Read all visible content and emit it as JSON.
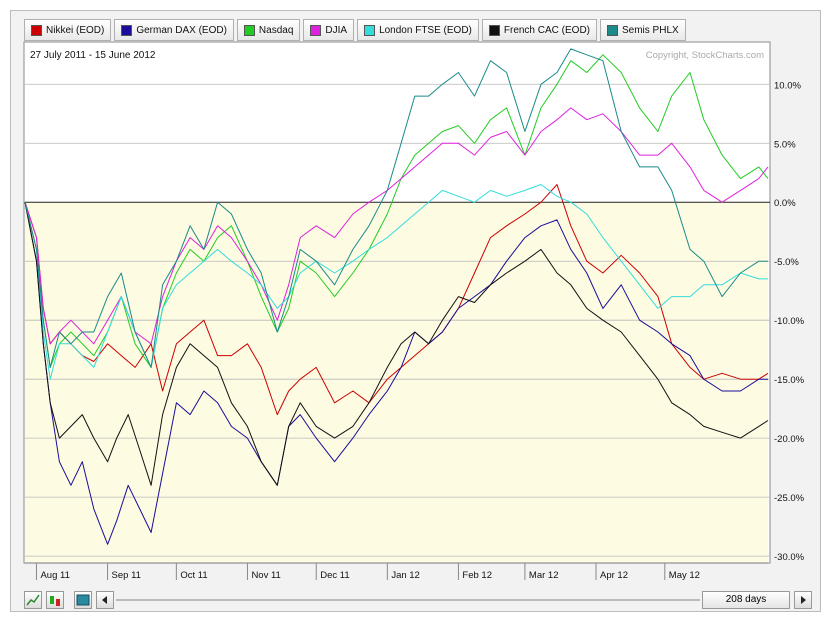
{
  "legend": [
    {
      "label": "Nikkei (EOD)",
      "color": "#cc0000"
    },
    {
      "label": "German DAX (EOD)",
      "color": "#1a0d99"
    },
    {
      "label": "Nasdaq",
      "color": "#22cc22"
    },
    {
      "label": "DJIA",
      "color": "#dd22dd"
    },
    {
      "label": "London FTSE (EOD)",
      "color": "#33dddd"
    },
    {
      "label": "French CAC (EOD)",
      "color": "#111111"
    },
    {
      "label": "Semis PHLX",
      "color": "#1a8a8a"
    }
  ],
  "date_range": "27 July 2011 - 15 June 2012",
  "copyright": "Copyright, StockCharts.com",
  "controls": {
    "days_label": "208 days",
    "prev_icon": "arrow-left-icon",
    "next_icon": "arrow-right-icon"
  },
  "chart_data": {
    "type": "line",
    "y_axis_label": "",
    "ylim": [
      -30.5,
      13.5
    ],
    "y_ticks": [
      "10.0%",
      "5.0%",
      "0.0%",
      "-5.0%",
      "-10.0%",
      "-15.0%",
      "-20.0%",
      "-25.0%",
      "-30.0%"
    ],
    "y_tick_values": [
      10,
      5,
      0,
      -5,
      -10,
      -15,
      -20,
      -25,
      -30
    ],
    "x_ticks": [
      "Aug 11",
      "Sep 11",
      "Oct 11",
      "Nov 11",
      "Dec 11",
      "Jan 12",
      "Feb 12",
      "Mar 12",
      "Apr 12",
      "May 12"
    ],
    "x_tick_days": [
      5,
      36,
      66,
      97,
      127,
      158,
      189,
      218,
      249,
      279
    ],
    "x_range_days": [
      0,
      324
    ],
    "grid": true,
    "legend_position": "top",
    "series": [
      {
        "name": "Nikkei (EOD)",
        "color": "#cc0000",
        "x": [
          0,
          5,
          8,
          11,
          15,
          20,
          25,
          30,
          36,
          42,
          48,
          55,
          60,
          66,
          72,
          78,
          84,
          90,
          97,
          103,
          110,
          115,
          120,
          127,
          135,
          143,
          150,
          158,
          164,
          170,
          176,
          182,
          189,
          196,
          203,
          210,
          218,
          225,
          232,
          238,
          245,
          252,
          260,
          268,
          276,
          282,
          290,
          296,
          304,
          312,
          320,
          324
        ],
        "y": [
          0,
          -3,
          -9,
          -12,
          -11,
          -12,
          -13,
          -13.5,
          -12,
          -13,
          -14,
          -12,
          -16,
          -12,
          -11,
          -10,
          -13,
          -13,
          -12,
          -14,
          -18,
          -16,
          -15,
          -14,
          -17,
          -16,
          -17,
          -15,
          -14,
          -13,
          -12,
          -11,
          -9,
          -6,
          -3,
          -2,
          -1,
          0,
          1.5,
          -2,
          -5,
          -6,
          -4.5,
          -6,
          -8,
          -12,
          -14,
          -15,
          -14.5,
          -15,
          -15,
          -14.5
        ]
      },
      {
        "name": "German DAX (EOD)",
        "color": "#1a0d99",
        "x": [
          0,
          5,
          8,
          11,
          15,
          20,
          25,
          30,
          36,
          40,
          45,
          50,
          55,
          60,
          66,
          72,
          78,
          84,
          90,
          97,
          103,
          110,
          115,
          120,
          127,
          135,
          143,
          150,
          158,
          164,
          170,
          176,
          182,
          189,
          196,
          203,
          210,
          218,
          225,
          232,
          238,
          245,
          252,
          260,
          268,
          276,
          282,
          290,
          296,
          304,
          312,
          320,
          324
        ],
        "y": [
          0,
          -5,
          -12,
          -17,
          -22,
          -24,
          -22,
          -26,
          -29,
          -27,
          -24,
          -26,
          -28,
          -23,
          -17,
          -18,
          -16,
          -17,
          -19,
          -20,
          -22,
          -24,
          -19,
          -18,
          -20,
          -22,
          -20,
          -18,
          -16,
          -14,
          -11,
          -12,
          -11,
          -9,
          -8,
          -7,
          -5,
          -3,
          -2,
          -1.5,
          -4,
          -6,
          -9,
          -7,
          -10,
          -11,
          -12,
          -13,
          -15,
          -16,
          -16,
          -15,
          -15
        ]
      },
      {
        "name": "Nasdaq",
        "color": "#22cc22",
        "x": [
          0,
          5,
          8,
          11,
          15,
          20,
          25,
          30,
          36,
          42,
          48,
          55,
          60,
          66,
          72,
          78,
          84,
          90,
          97,
          103,
          110,
          115,
          120,
          127,
          135,
          143,
          150,
          158,
          164,
          170,
          176,
          182,
          189,
          196,
          203,
          210,
          218,
          225,
          232,
          238,
          245,
          252,
          260,
          268,
          276,
          282,
          290,
          296,
          304,
          312,
          320,
          324
        ],
        "y": [
          0,
          -4,
          -10,
          -14,
          -12,
          -11,
          -12,
          -13,
          -11,
          -8,
          -12,
          -14,
          -9,
          -6,
          -4,
          -5,
          -3,
          -2,
          -5,
          -8,
          -11,
          -9,
          -5,
          -6,
          -8,
          -6,
          -4,
          -1,
          2,
          4,
          5,
          6,
          6.5,
          5,
          7,
          8,
          4,
          8,
          10,
          12,
          11,
          12.5,
          11,
          8,
          6,
          9,
          11,
          7,
          4,
          2,
          3,
          2
        ]
      },
      {
        "name": "DJIA",
        "color": "#dd22dd",
        "x": [
          0,
          5,
          8,
          11,
          15,
          20,
          25,
          30,
          36,
          42,
          48,
          55,
          60,
          66,
          72,
          78,
          84,
          90,
          97,
          103,
          110,
          115,
          120,
          127,
          135,
          143,
          150,
          158,
          164,
          170,
          176,
          182,
          189,
          196,
          203,
          210,
          218,
          225,
          232,
          238,
          245,
          252,
          260,
          268,
          276,
          282,
          290,
          296,
          304,
          312,
          320,
          324
        ],
        "y": [
          0,
          -3,
          -9,
          -12,
          -11,
          -10,
          -11,
          -12,
          -10,
          -8,
          -11,
          -12,
          -8,
          -5,
          -3,
          -4,
          -2,
          -3,
          -5,
          -7,
          -10,
          -7,
          -3,
          -2,
          -3,
          -1,
          0,
          1,
          2,
          3,
          4,
          5,
          5,
          4,
          5.5,
          6,
          4,
          6,
          7,
          8,
          7,
          7.5,
          6,
          4,
          4,
          5,
          3,
          1,
          0,
          1,
          2,
          3
        ]
      },
      {
        "name": "London FTSE (EOD)",
        "color": "#33dddd",
        "x": [
          0,
          5,
          8,
          11,
          15,
          20,
          25,
          30,
          36,
          42,
          48,
          55,
          60,
          66,
          72,
          78,
          84,
          90,
          97,
          103,
          110,
          115,
          120,
          127,
          135,
          143,
          150,
          158,
          164,
          170,
          176,
          182,
          189,
          196,
          203,
          210,
          218,
          225,
          232,
          238,
          245,
          252,
          260,
          268,
          276,
          282,
          290,
          296,
          304,
          312,
          320,
          324
        ],
        "y": [
          0,
          -4,
          -11,
          -15,
          -12,
          -12,
          -13,
          -14,
          -11,
          -8,
          -11,
          -14,
          -9,
          -7,
          -6,
          -5,
          -4,
          -5,
          -6,
          -7,
          -9,
          -8,
          -6,
          -5,
          -6,
          -5,
          -4,
          -3,
          -2,
          -1,
          0,
          1,
          0.5,
          0,
          1,
          0.5,
          1,
          1.5,
          0.5,
          0,
          -1,
          -3,
          -5,
          -7,
          -9,
          -8,
          -8,
          -7,
          -7,
          -6,
          -6.5,
          -6.5
        ]
      },
      {
        "name": "French CAC (EOD)",
        "color": "#111111",
        "x": [
          0,
          5,
          8,
          11,
          15,
          20,
          25,
          30,
          36,
          40,
          45,
          50,
          55,
          60,
          66,
          72,
          78,
          84,
          90,
          97,
          103,
          110,
          115,
          120,
          127,
          135,
          143,
          150,
          158,
          164,
          170,
          176,
          182,
          189,
          196,
          203,
          210,
          218,
          225,
          232,
          238,
          245,
          252,
          260,
          268,
          276,
          282,
          290,
          296,
          304,
          312,
          320,
          324
        ],
        "y": [
          0,
          -5,
          -12,
          -17,
          -20,
          -19,
          -18,
          -20,
          -22,
          -20,
          -18,
          -21,
          -24,
          -18,
          -14,
          -12,
          -13,
          -14,
          -17,
          -19,
          -22,
          -24,
          -19,
          -17,
          -19,
          -20,
          -19,
          -17,
          -14,
          -12,
          -11,
          -12,
          -10,
          -8,
          -8.5,
          -7,
          -6,
          -5,
          -4,
          -6,
          -7,
          -9,
          -10,
          -11,
          -13,
          -15,
          -17,
          -18,
          -19,
          -19.5,
          -20,
          -19,
          -18.5
        ]
      },
      {
        "name": "Semis PHLX",
        "color": "#1a8a8a",
        "x": [
          0,
          5,
          8,
          11,
          15,
          20,
          25,
          30,
          36,
          42,
          48,
          55,
          60,
          66,
          72,
          78,
          84,
          90,
          97,
          103,
          110,
          115,
          120,
          127,
          135,
          143,
          150,
          158,
          164,
          170,
          176,
          182,
          189,
          196,
          203,
          210,
          218,
          225,
          232,
          238,
          245,
          252,
          260,
          268,
          276,
          282,
          290,
          296,
          304,
          312,
          320,
          324
        ],
        "y": [
          0,
          -4,
          -10,
          -14,
          -11,
          -12,
          -11,
          -11,
          -8,
          -6,
          -11,
          -14,
          -7,
          -5,
          -2,
          -4,
          0,
          -1,
          -4,
          -6,
          -11,
          -8,
          -4,
          -5,
          -7,
          -4,
          -2,
          1,
          5,
          9,
          9,
          10,
          11,
          9,
          12,
          11,
          6,
          10,
          11,
          13,
          12.5,
          12,
          6,
          3,
          3,
          1,
          -4,
          -5,
          -8,
          -6,
          -5,
          -5
        ]
      }
    ]
  }
}
